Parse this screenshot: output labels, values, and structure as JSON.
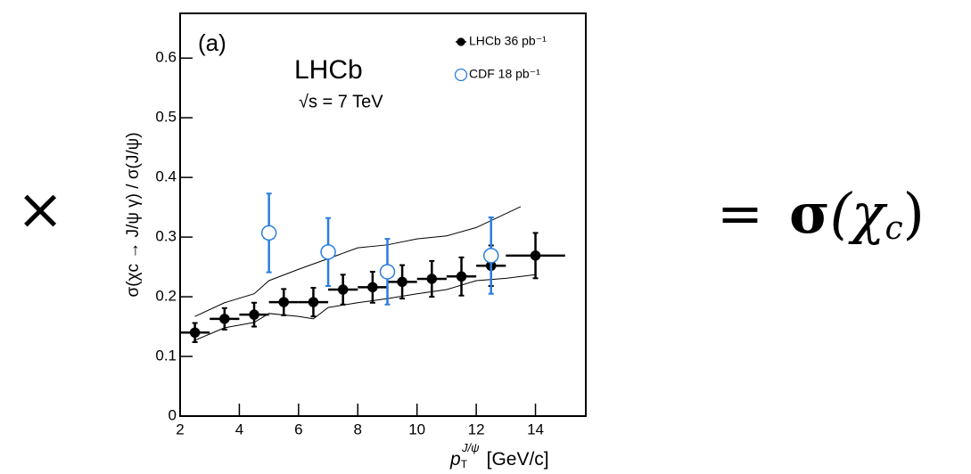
{
  "chart_data": {
    "type": "errorbar",
    "panel_label": "(a)",
    "title": "LHCb",
    "subtitle": "√s = 7 TeV",
    "y_label": "σ(χc → J/ψ γ) / σ(J/ψ)",
    "x_label": {
      "main": "p",
      "sub": "T",
      "sup": "J/ψ",
      "unit": "[GeV/c]"
    },
    "xlim": [
      2,
      15.7
    ],
    "ylim": [
      0,
      0.675
    ],
    "xticks": [
      2,
      4,
      6,
      8,
      10,
      12,
      14
    ],
    "yticks": [
      0,
      0.1,
      0.2,
      0.3,
      0.4,
      0.5,
      0.6
    ],
    "legend": "top-right",
    "series": [
      {
        "name": "LHCb 36 pb⁻¹",
        "color": "#000000",
        "marker": "filled",
        "x": [
          2.5,
          3.5,
          4.5,
          5.5,
          6.5,
          7.5,
          8.5,
          9.5,
          10.5,
          11.5,
          12.5,
          14
        ],
        "xerr": [
          0.5,
          0.5,
          0.5,
          0.5,
          0.5,
          0.5,
          0.5,
          0.5,
          0.5,
          0.5,
          0.5,
          1
        ],
        "values": [
          0.14,
          0.163,
          0.17,
          0.191,
          0.191,
          0.212,
          0.216,
          0.225,
          0.23,
          0.234,
          0.252,
          0.269
        ],
        "yerr": [
          0.016,
          0.018,
          0.02,
          0.022,
          0.024,
          0.025,
          0.026,
          0.028,
          0.03,
          0.032,
          0.034,
          0.038
        ]
      },
      {
        "name": "CDF 18 pb⁻¹",
        "color": "#2a7de1",
        "marker": "open",
        "x": [
          5,
          7,
          9,
          12.5
        ],
        "values": [
          0.307,
          0.275,
          0.242,
          0.269
        ],
        "yerr": [
          0.066,
          0.057,
          0.055,
          0.064
        ]
      }
    ],
    "bands": [
      {
        "x": [
          2.5,
          3.5,
          4.5,
          5,
          6,
          7,
          8,
          9,
          10,
          11,
          12,
          13.5
        ],
        "values": [
          0.167,
          0.19,
          0.205,
          0.227,
          0.246,
          0.264,
          0.282,
          0.287,
          0.297,
          0.302,
          0.316,
          0.351
        ]
      },
      {
        "x": [
          2.5,
          3.5,
          4.5,
          5,
          6,
          6.5,
          7,
          8,
          9,
          10,
          11,
          12,
          13,
          14
        ],
        "values": [
          0.127,
          0.148,
          0.157,
          0.172,
          0.167,
          0.163,
          0.182,
          0.19,
          0.197,
          0.205,
          0.212,
          0.227,
          0.231,
          0.237
        ]
      }
    ]
  },
  "equation": {
    "operator": "×",
    "equals": "=",
    "result": [
      "σ",
      "(χ",
      "c",
      ")"
    ]
  }
}
